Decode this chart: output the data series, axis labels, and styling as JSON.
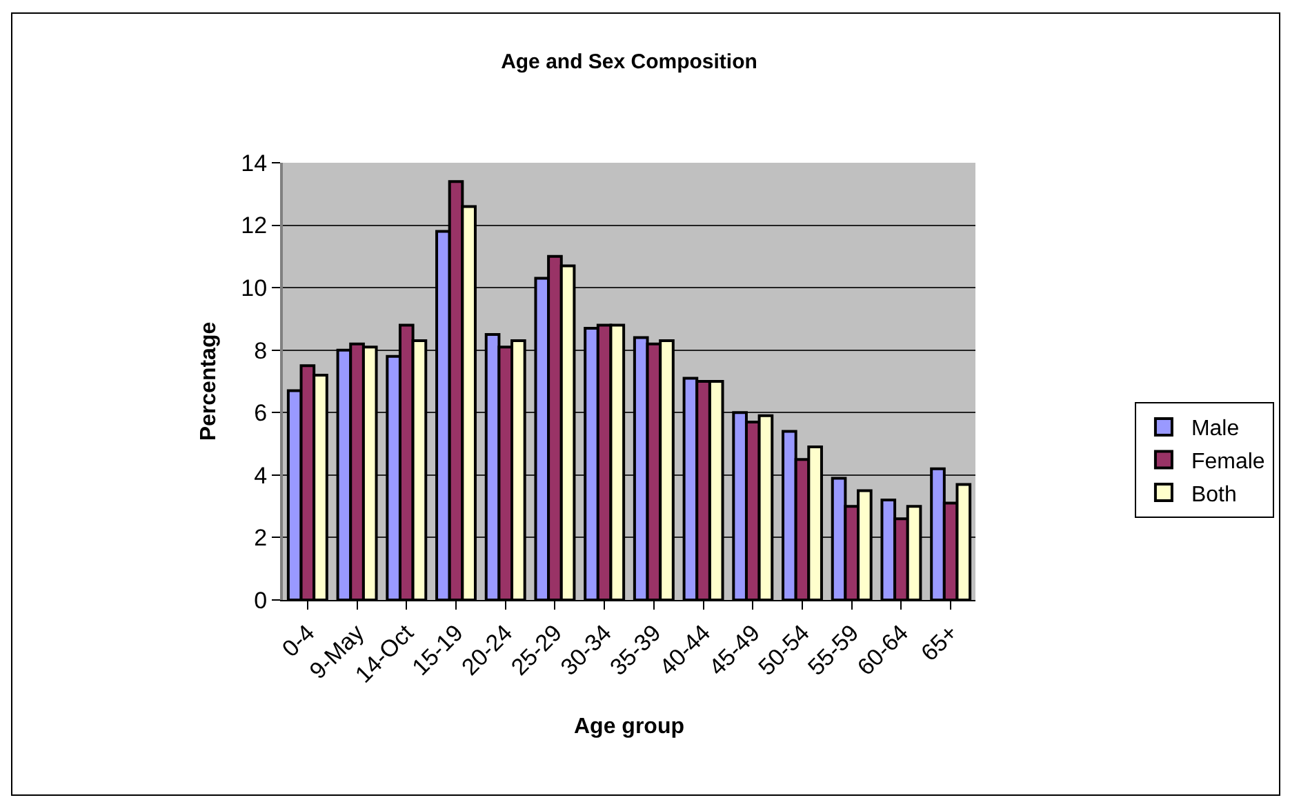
{
  "chart_data": {
    "type": "bar",
    "title": "Age and Sex Composition",
    "xlabel": "Age group",
    "ylabel": "Percentage",
    "categories": [
      "0-4",
      "9-May",
      "14-Oct",
      "15-19",
      "20-24",
      "25-29",
      "30-34",
      "35-39",
      "40-44",
      "45-49",
      "50-54",
      "55-59",
      "60-64",
      "65+"
    ],
    "series": [
      {
        "name": "Male",
        "color": "#9999ff",
        "values": [
          6.7,
          8.0,
          7.8,
          11.8,
          8.5,
          10.3,
          8.7,
          8.4,
          7.1,
          6.0,
          5.4,
          3.9,
          3.2,
          4.2
        ]
      },
      {
        "name": "Female",
        "color": "#993366",
        "values": [
          7.5,
          8.2,
          8.8,
          13.4,
          8.1,
          11.0,
          8.8,
          8.2,
          7.0,
          5.7,
          4.5,
          3.0,
          2.6,
          3.1
        ]
      },
      {
        "name": "Both",
        "color": "#ffffcc",
        "values": [
          7.2,
          8.1,
          8.3,
          12.6,
          8.3,
          10.7,
          8.8,
          8.3,
          7.0,
          5.9,
          4.9,
          3.5,
          3.0,
          3.7
        ]
      }
    ],
    "ylim": [
      0,
      14
    ],
    "yticks": [
      0,
      2,
      4,
      6,
      8,
      10,
      12,
      14
    ],
    "grid": "y",
    "legend": "right"
  }
}
